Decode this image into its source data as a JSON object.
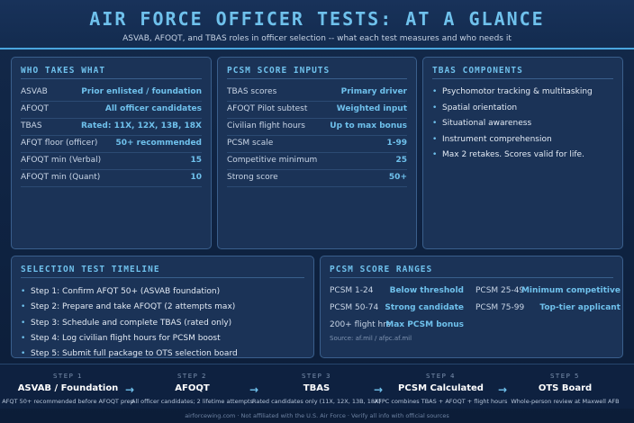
{
  "header": {
    "title": "AIR FORCE OFFICER TESTS: AT A GLANCE",
    "subtitle": "ASVAB, AFOQT, and TBAS roles in officer selection -- what each test measures and who needs it"
  },
  "who_takes_what": {
    "title": "WHO TAKES WHAT",
    "rows": [
      {
        "k": "ASVAB",
        "v": "Prior enlisted / foundation"
      },
      {
        "k": "AFOQT",
        "v": "All officer candidates"
      },
      {
        "k": "TBAS",
        "v": "Rated: 11X, 12X, 13B, 18X"
      },
      {
        "k": "AFQT floor (officer)",
        "v": "50+ recommended"
      },
      {
        "k": "AFOQT min (Verbal)",
        "v": "15"
      },
      {
        "k": "AFOQT min (Quant)",
        "v": "10"
      }
    ]
  },
  "pcsm_inputs": {
    "title": "PCSM SCORE INPUTS",
    "rows": [
      {
        "k": "TBAS scores",
        "v": "Primary driver"
      },
      {
        "k": "AFOQT Pilot subtest",
        "v": "Weighted input"
      },
      {
        "k": "Civilian flight hours",
        "v": "Up to max bonus"
      },
      {
        "k": "PCSM scale",
        "v": "1-99"
      },
      {
        "k": "Competitive minimum",
        "v": "25"
      },
      {
        "k": "Strong score",
        "v": "50+"
      }
    ]
  },
  "tbas_components": {
    "title": "TBAS COMPONENTS",
    "items": [
      "Psychomotor tracking & multitasking",
      "Spatial orientation",
      "Situational awareness",
      "Instrument comprehension",
      "Max 2 retakes. Scores valid for life."
    ]
  },
  "timeline": {
    "title": "SELECTION TEST TIMELINE",
    "items": [
      "Step 1: Confirm AFQT 50+ (ASVAB foundation)",
      "Step 2: Prepare and take AFOQT (2 attempts max)",
      "Step 3: Schedule and complete TBAS (rated only)",
      "Step 4: Log civilian flight hours for PCSM boost",
      "Step 5: Submit full package to OTS selection board"
    ]
  },
  "pcsm_ranges": {
    "title": "PCSM SCORE RANGES",
    "left": [
      {
        "k": "PCSM 1-24",
        "v": "Below threshold"
      },
      {
        "k": "PCSM 50-74",
        "v": "Strong candidate"
      },
      {
        "k": "200+ flight hrs",
        "v": "Max PCSM bonus"
      }
    ],
    "right": [
      {
        "k": "PCSM 25-49",
        "v": "Minimum competitive"
      },
      {
        "k": "PCSM 75-99",
        "v": "Top-tier applicant"
      }
    ],
    "source": "Source: af.mil / afpc.af.mil"
  },
  "steps": [
    {
      "num": "STEP 1",
      "name": "ASVAB / Foundation",
      "desc": "AFQT 50+ recommended before AFOQT prep"
    },
    {
      "num": "STEP 2",
      "name": "AFOQT",
      "desc": "All officer candidates; 2 lifetime attempts"
    },
    {
      "num": "STEP 3",
      "name": "TBAS",
      "desc": "Rated candidates only (11X, 12X, 13B, 18X)"
    },
    {
      "num": "STEP 4",
      "name": "PCSM Calculated",
      "desc": "AFPC combines TBAS + AFOQT + flight hours"
    },
    {
      "num": "STEP 5",
      "name": "OTS Board",
      "desc": "Whole-person review at Maxwell AFB"
    }
  ],
  "arrow_glyph": "→",
  "bullet_glyph": "•",
  "footer": "airforcewing.com · Not affiliated with the U.S. Air Force · Verify all info with official sources"
}
